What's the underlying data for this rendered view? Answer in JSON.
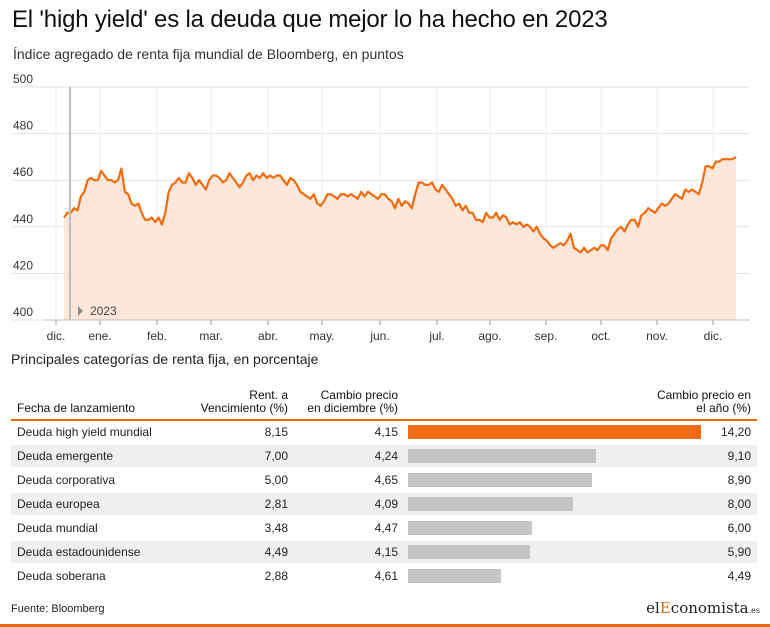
{
  "title": "El 'high yield' es la deuda que mejor lo ha hecho en 2023",
  "subtitle": "Índice agregado de renta fija mundial de Bloomberg, en puntos",
  "colors": {
    "accent": "#f26b0f",
    "area": "#fde3d3",
    "bar": "#c4c4c4",
    "rule": "#e76a0c"
  },
  "chart_data": {
    "type": "area",
    "ylim": [
      400,
      500
    ],
    "yticks": [
      400,
      420,
      440,
      460,
      480,
      500
    ],
    "grid": true,
    "months": [
      "dic.",
      "ene.",
      "feb.",
      "mar.",
      "abr.",
      "may.",
      "jun.",
      "jul.",
      "ago.",
      "sep.",
      "oct.",
      "nov.",
      "dic."
    ],
    "year_marker": "2023",
    "values": [
      444,
      446,
      446,
      448,
      447,
      453,
      455,
      460,
      461,
      460,
      460,
      464,
      462,
      460,
      460,
      459,
      460,
      465,
      455,
      454,
      450,
      449,
      450,
      446,
      443,
      443,
      444,
      442,
      444,
      441,
      446,
      455,
      458,
      459,
      461,
      459,
      459,
      463,
      461,
      458,
      460,
      458,
      456,
      460,
      462,
      462,
      461,
      459,
      460,
      463,
      461,
      459,
      457,
      459,
      462,
      463,
      460,
      462,
      461,
      463,
      461,
      462,
      461,
      462,
      462,
      460,
      458,
      461,
      460,
      458,
      455,
      454,
      453,
      452,
      454,
      450,
      449,
      451,
      454,
      454,
      453,
      452,
      454,
      454,
      453,
      454,
      453,
      452,
      455,
      453,
      455,
      454,
      453,
      452,
      454,
      454,
      452,
      451,
      448,
      452,
      449,
      451,
      450,
      448,
      454,
      459,
      459,
      458,
      458,
      459,
      456,
      455,
      458,
      456,
      454,
      452,
      449,
      450,
      447,
      449,
      446,
      446,
      443,
      443,
      442,
      446,
      444,
      444,
      446,
      443,
      445,
      444,
      441,
      442,
      441,
      442,
      440,
      441,
      440,
      438,
      440,
      437,
      435,
      434,
      432,
      431,
      432,
      433,
      432,
      434,
      437,
      431,
      430,
      429,
      431,
      429,
      430,
      431,
      430,
      432,
      432,
      430,
      435,
      437,
      439,
      440,
      438,
      441,
      443,
      443,
      440,
      445,
      446,
      448,
      447,
      446,
      448,
      450,
      449,
      450,
      452,
      454,
      453,
      452,
      456,
      455,
      456,
      455,
      454,
      459,
      466,
      466,
      465,
      468,
      468,
      469,
      469,
      469,
      469,
      470
    ]
  },
  "table": {
    "section_title": "Principales categorías de renta fija, en porcentaje",
    "headers": {
      "name": "Fecha de lanzamiento",
      "ytm_line1": "Rent. a",
      "ytm_line2": "Vencimiento (%)",
      "dec_line1": "Cambio precio",
      "dec_line2": "en diciembre (%)",
      "year_line1": "Cambio precio en",
      "year_line2": "el año (%)"
    },
    "rows": [
      {
        "name": "Deuda high yield mundial",
        "ytm": "8,15",
        "dec": "4,15",
        "year": "14,20",
        "year_value": 14.2
      },
      {
        "name": "Deuda emergente",
        "ytm": "7,00",
        "dec": "4,24",
        "year": "9,10",
        "year_value": 9.1
      },
      {
        "name": "Deuda corporativa",
        "ytm": "5,00",
        "dec": "4,65",
        "year": "8,90",
        "year_value": 8.9
      },
      {
        "name": "Deuda europea",
        "ytm": "2,81",
        "dec": "4,09",
        "year": "8,00",
        "year_value": 8.0
      },
      {
        "name": "Deuda mundial",
        "ytm": "3,48",
        "dec": "4,47",
        "year": "6,00",
        "year_value": 6.0
      },
      {
        "name": "Deuda estadounidense",
        "ytm": "4,49",
        "dec": "4,15",
        "year": "5,90",
        "year_value": 5.9
      },
      {
        "name": "Deuda soberana",
        "ytm": "2,88",
        "dec": "4,61",
        "year": "4,49",
        "year_value": 4.49
      }
    ]
  },
  "source": "Fuente: Bloomberg",
  "logo": {
    "part1": "el",
    "part2": "E",
    "part3": "conomista",
    "suffix": ".es"
  }
}
